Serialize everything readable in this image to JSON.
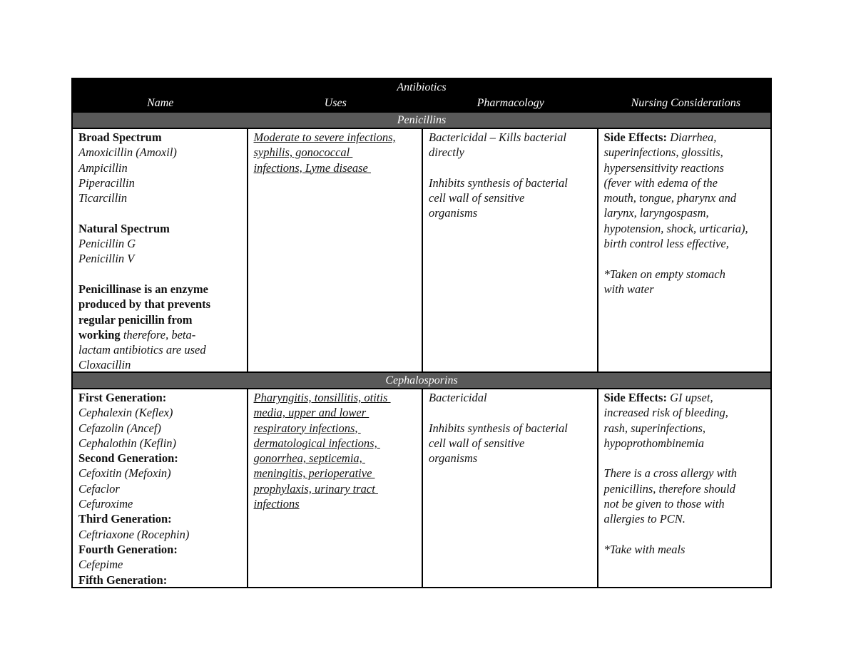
{
  "title": "Antibiotics",
  "columns": [
    "Name",
    "Uses",
    "Pharmacology",
    "Nursing Considerations"
  ],
  "sections": [
    {
      "name": "Penicillins",
      "cells": [
        [
          {
            "b": "Broad Spectrum"
          },
          {
            "i": "Amoxicillin (Amoxil)"
          },
          {
            "i": "Ampicillin"
          },
          {
            "i": "Piperacillin"
          },
          {
            "i": "Ticarcillin"
          },
          {},
          {
            "b": "Natural Spectrum"
          },
          {
            "i": "Penicillin G"
          },
          {
            "i": "Penicillin V"
          },
          {},
          {
            "b": "Penicillinase is an enzyme"
          },
          {
            "b": "produced by that prevents"
          },
          {
            "b": "regular penicillin from"
          },
          {
            "b": "working",
            "i": " therefore, beta-"
          },
          {
            "i": "lactam antibiotics are used"
          },
          {
            "i": "Cloxacillin"
          }
        ],
        [
          {
            "i": "Moderate to severe infections,"
          },
          {
            "i": "syphilis, gonococcal "
          },
          {
            "i": "infections, Lyme disease "
          }
        ],
        [
          {
            "i": "Bactericidal – Kills bacterial"
          },
          {
            "i": "directly"
          },
          {},
          {
            "i": "Inhibits synthesis of bacterial"
          },
          {
            "i": "cell wall of sensitive"
          },
          {
            "i": "organisms"
          }
        ],
        [
          {
            "b": "Side Effects:",
            "i": " Diarrhea,"
          },
          {
            "i": "superinfections, glossitis,"
          },
          {
            "i": "hypersensitivity reactions"
          },
          {
            "i": "(fever with edema of the"
          },
          {
            "i": "mouth, tongue, pharynx and"
          },
          {
            "i": "larynx, laryngospasm,"
          },
          {
            "i": "hypotension, shock, urticaria),"
          },
          {
            "i": "birth control less effective,"
          },
          {},
          {
            "i": "*Taken on empty stomach"
          },
          {
            "i": "with water"
          }
        ]
      ]
    },
    {
      "name": "Cephalosporins",
      "cells": [
        [
          {
            "b": "First Generation:"
          },
          {
            "i": "Cephalexin (Keflex)"
          },
          {
            "i": "Cefazolin (Ancef)"
          },
          {
            "i": "Cephalothin (Keflin)"
          },
          {
            "b": "Second Generation:"
          },
          {
            "i": "Cefoxitin (Mefoxin)"
          },
          {
            "i": "Cefaclor"
          },
          {
            "i": "Cefuroxime"
          },
          {
            "b": "Third Generation:"
          },
          {
            "i": "Ceftriaxone (Rocephin)"
          },
          {
            "b": "Fourth Generation:"
          },
          {
            "i": "Cefepime"
          },
          {
            "b": "Fifth Generation:"
          }
        ],
        [
          {
            "i": "Pharyngitis, tonsillitis, otitis "
          },
          {
            "i": "media, upper and lower "
          },
          {
            "i": "respiratory infections, "
          },
          {
            "i": "dermatological infections, "
          },
          {
            "i": "gonorrhea, septicemia, "
          },
          {
            "i": "meningitis, perioperative "
          },
          {
            "i": "prophylaxis, urinary tract "
          },
          {
            "i": "infections"
          }
        ],
        [
          {
            "i": "Bactericidal"
          },
          {},
          {
            "i": "Inhibits synthesis of bacterial"
          },
          {
            "i": "cell wall of sensitive"
          },
          {
            "i": "organisms"
          }
        ],
        [
          {
            "b": "Side Effects:",
            "i": " GI upset,"
          },
          {
            "i": "increased risk of bleeding,"
          },
          {
            "i": "rash, superinfections,"
          },
          {
            "i": "hypoprothombinemia"
          },
          {},
          {
            "i": "There is a cross allergy with"
          },
          {
            "i": "penicillins, therefore should"
          },
          {
            "i": "not be given to those with"
          },
          {
            "i": "allergies to PCN."
          },
          {},
          {
            "i": "*Take with meals"
          }
        ]
      ]
    }
  ]
}
